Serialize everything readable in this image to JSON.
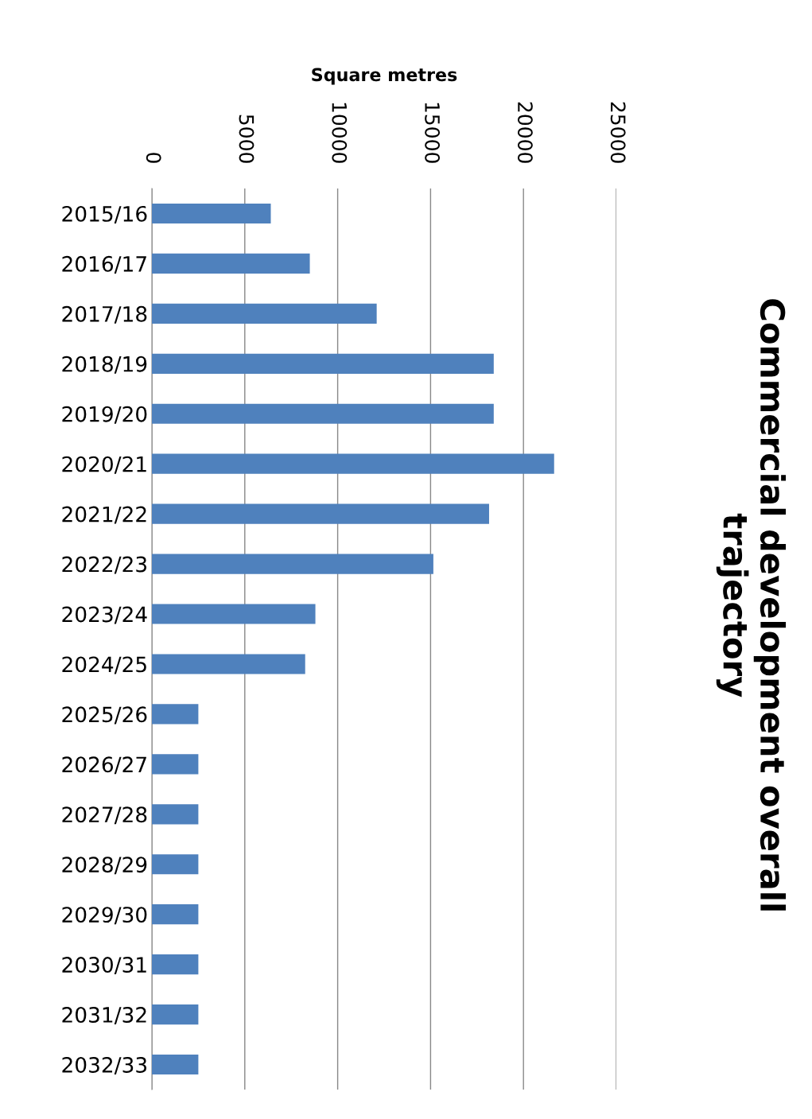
{
  "chart_data": {
    "type": "bar",
    "orientation": "horizontal",
    "title": "Commercial development overall\ntrajectory",
    "xlabel": "Square metres",
    "categories": [
      "2015/16",
      "2016/17",
      "2017/18",
      "2018/19",
      "2019/20",
      "2020/21",
      "2021/22",
      "2022/23",
      "2023/24",
      "2024/25",
      "2025/26",
      "2026/27",
      "2027/28",
      "2028/29",
      "2029/30",
      "2030/31",
      "2031/32",
      "2032/33"
    ],
    "values": [
      6400,
      8500,
      12100,
      18400,
      18400,
      21650,
      18150,
      15150,
      8800,
      8250,
      2500,
      2500,
      2500,
      2500,
      2500,
      2500,
      2500,
      2500
    ],
    "color": "#4f81bd",
    "xlim": [
      0,
      25000
    ],
    "xticks": [
      0,
      5000,
      10000,
      15000,
      20000,
      25000
    ],
    "grid": "x"
  }
}
